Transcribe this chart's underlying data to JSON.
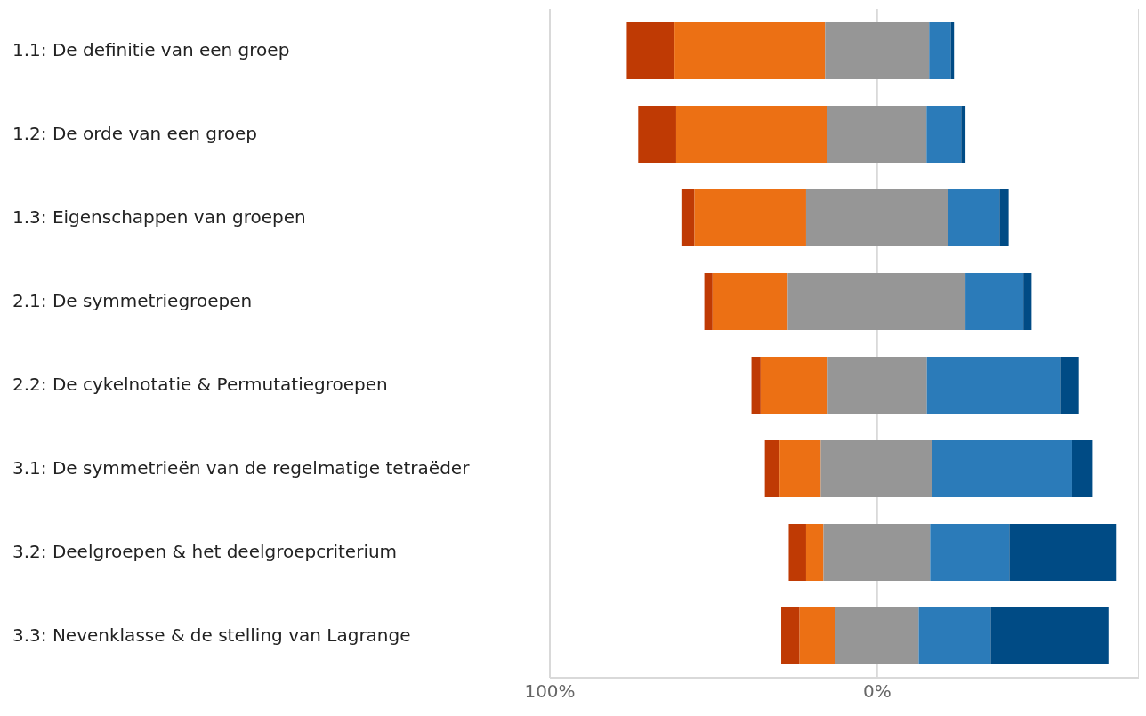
{
  "chart_data": {
    "type": "bar",
    "orientation": "horizontal",
    "categories": [
      "1.1: De definitie van een groep",
      "1.2: De orde van een groep",
      "1.3: Eigenschappen van groepen",
      "2.1: De symmetriegroepen",
      "2.2: De cykelnotatie & Permutatiegroepen",
      "3.1: De symmetrieën van de regelmatige tetraëder",
      "3.2: Deelgroepen & het deelgroepcriterium",
      "3.3: Nevenklasse & de stelling van Lagrange"
    ],
    "series": [
      {
        "color": "#bf3a04",
        "base": [
          -76.5,
          -73.0,
          -59.8,
          -52.8,
          -38.4,
          -34.3,
          -27.0,
          -29.3
        ],
        "values": [
          14.6,
          11.6,
          4.0,
          2.5,
          2.8,
          4.5,
          5.3,
          5.6
        ]
      },
      {
        "color": "#ec7014",
        "base": [
          -61.9,
          -61.4,
          -55.8,
          -50.3,
          -35.6,
          -29.8,
          -21.7,
          -23.7
        ],
        "values": [
          46.0,
          46.2,
          34.1,
          23.0,
          20.5,
          12.6,
          5.3,
          10.9
        ]
      },
      {
        "color": "#969696",
        "base": [
          -15.9,
          -15.2,
          -21.7,
          -27.3,
          -15.1,
          -17.2,
          -16.4,
          -12.8
        ],
        "values": [
          31.8,
          30.3,
          43.4,
          54.3,
          30.3,
          34.1,
          32.6,
          25.5
        ]
      },
      {
        "color": "#2b7bb9",
        "base": [
          15.9,
          15.1,
          21.7,
          27.0,
          15.2,
          16.9,
          16.2,
          12.7
        ],
        "values": [
          6.6,
          10.6,
          15.7,
          17.7,
          40.7,
          42.7,
          24.2,
          22.0
        ]
      },
      {
        "color": "#004b85",
        "base": [
          22.5,
          25.7,
          37.4,
          44.7,
          55.9,
          59.6,
          40.4,
          34.7
        ],
        "values": [
          1.0,
          1.3,
          2.8,
          2.5,
          5.8,
          6.1,
          32.6,
          36.0
        ]
      }
    ],
    "xlim": [
      -100,
      80
    ],
    "xticks": [
      {
        "value": -100,
        "label": "100%"
      },
      {
        "value": 0,
        "label": "0%"
      }
    ],
    "grid": "x",
    "legend": false
  }
}
